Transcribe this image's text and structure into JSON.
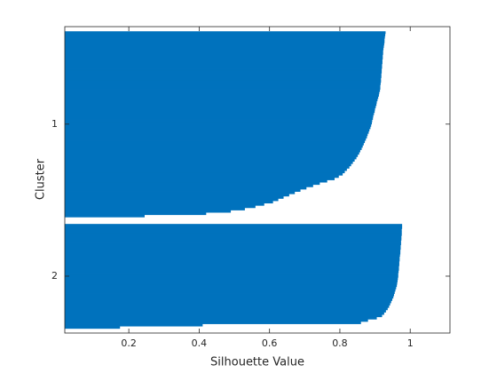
{
  "chart_data": {
    "type": "silhouette",
    "xlabel": "Silhouette Value",
    "ylabel": "Cluster",
    "xlim": [
      0.018,
      1.113
    ],
    "xticks": [
      0.2,
      0.4,
      0.6,
      0.8,
      1
    ],
    "color": "#0072bd",
    "clusters": [
      {
        "name": "1",
        "values": [
          0.93,
          0.929,
          0.928,
          0.927,
          0.927,
          0.926,
          0.925,
          0.924,
          0.923,
          0.923,
          0.922,
          0.922,
          0.921,
          0.921,
          0.92,
          0.92,
          0.919,
          0.919,
          0.918,
          0.918,
          0.917,
          0.917,
          0.916,
          0.915,
          0.915,
          0.914,
          0.912,
          0.911,
          0.909,
          0.907,
          0.905,
          0.904,
          0.902,
          0.9,
          0.899,
          0.897,
          0.895,
          0.894,
          0.892,
          0.891,
          0.889,
          0.887,
          0.884,
          0.882,
          0.879,
          0.877,
          0.874,
          0.871,
          0.868,
          0.865,
          0.862,
          0.858,
          0.855,
          0.851,
          0.847,
          0.842,
          0.837,
          0.832,
          0.827,
          0.82,
          0.814,
          0.808,
          0.797,
          0.785,
          0.764,
          0.743,
          0.724,
          0.705,
          0.688,
          0.672,
          0.656,
          0.64,
          0.625,
          0.61,
          0.585,
          0.56,
          0.53,
          0.49,
          0.42,
          0.245
        ]
      },
      {
        "name": "2",
        "values": [
          0.977,
          0.977,
          0.976,
          0.976,
          0.976,
          0.975,
          0.975,
          0.974,
          0.974,
          0.973,
          0.973,
          0.972,
          0.972,
          0.971,
          0.97,
          0.97,
          0.969,
          0.969,
          0.968,
          0.968,
          0.967,
          0.966,
          0.966,
          0.965,
          0.964,
          0.963,
          0.962,
          0.96,
          0.958,
          0.956,
          0.954,
          0.952,
          0.949,
          0.946,
          0.943,
          0.94,
          0.936,
          0.931,
          0.926,
          0.92,
          0.905,
          0.88,
          0.86,
          0.41,
          0.175
        ]
      }
    ]
  }
}
